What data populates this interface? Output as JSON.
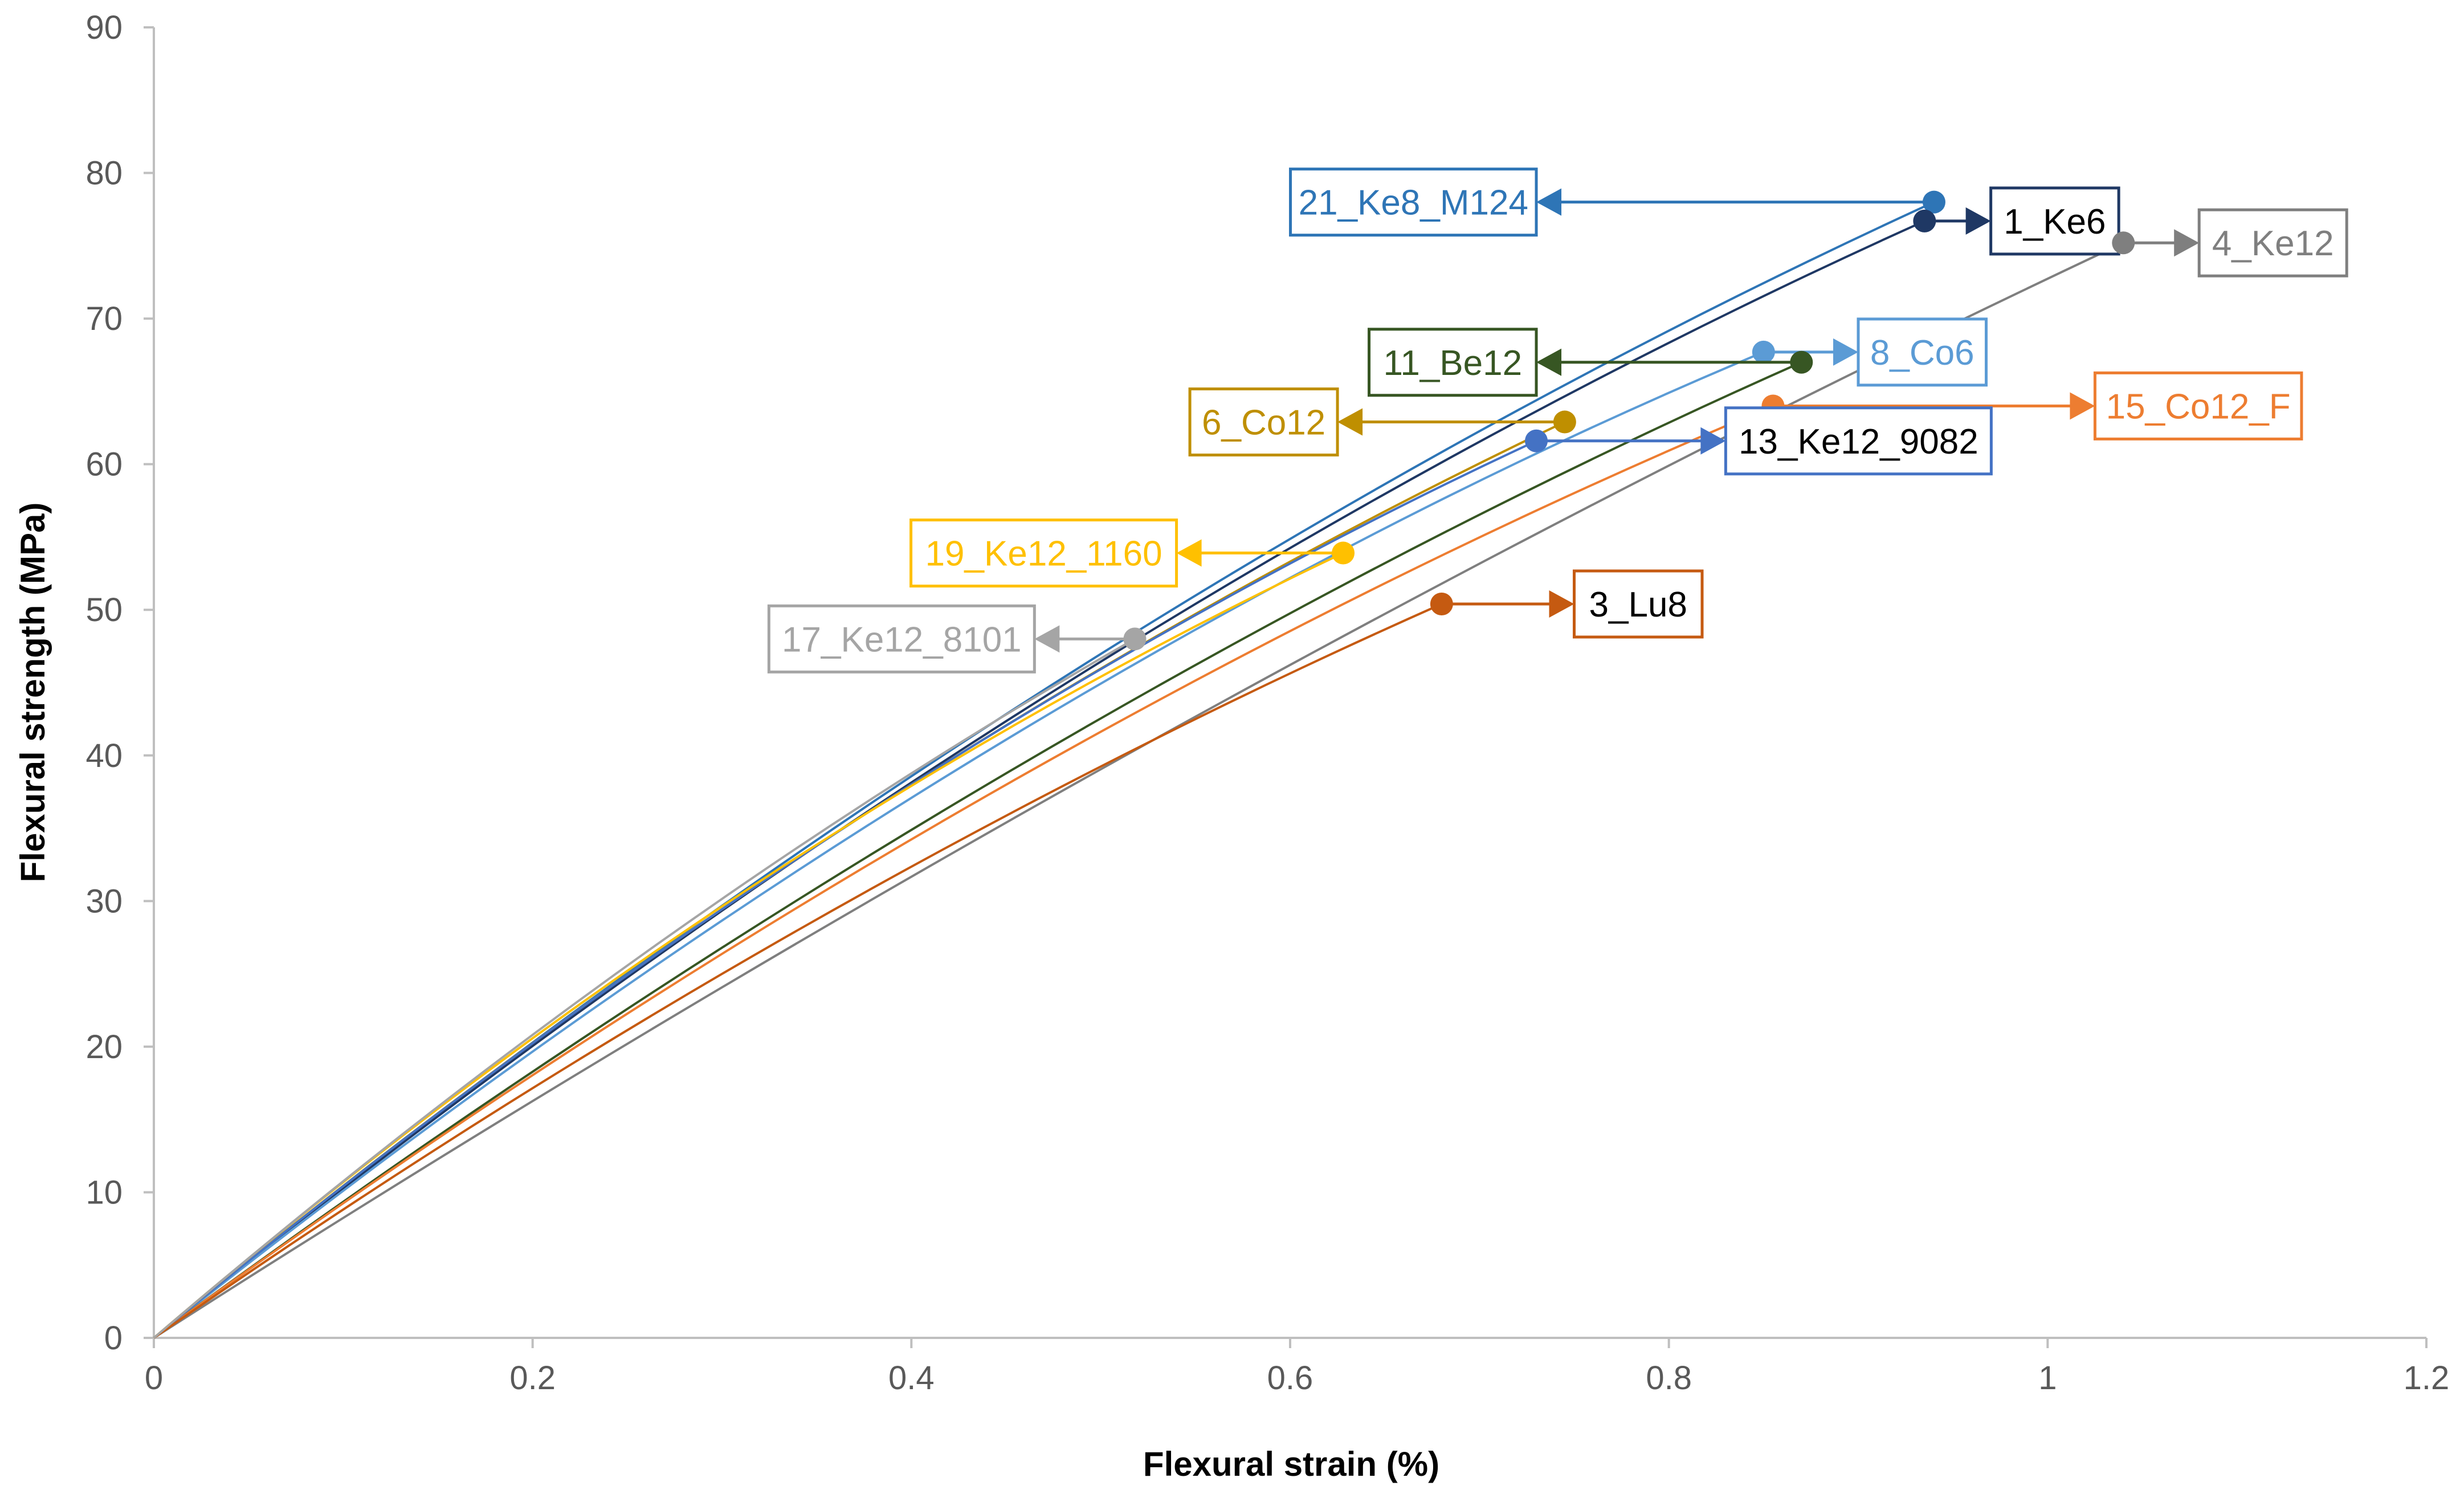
{
  "chart_data": {
    "type": "line",
    "title": "",
    "xlabel": "Flexural strain (%)",
    "ylabel": "Flexural strength (MPa)",
    "xlim": [
      0,
      1.2
    ],
    "ylim": [
      0,
      90
    ],
    "xticks": [
      0,
      0.2,
      0.4,
      0.6,
      0.8,
      1,
      1.2
    ],
    "xtick_labels": [
      "0",
      "0.2",
      "0.4",
      "0.6",
      "0.8",
      "1",
      "1.2"
    ],
    "yticks": [
      0,
      10,
      20,
      30,
      40,
      50,
      60,
      70,
      80,
      90
    ],
    "ytick_labels": [
      "0",
      "10",
      "20",
      "30",
      "40",
      "50",
      "60",
      "70",
      "80",
      "90"
    ],
    "grid": false,
    "series": [
      {
        "name": "21_Ke8_M124",
        "color": "#2E75B6",
        "end": [
          0.94,
          78.0
        ],
        "mid": [
          0.47,
          44.5
        ],
        "box_dir": "left",
        "box_x": 0.73,
        "box_y": 78.0
      },
      {
        "name": "1_Ke6",
        "color": "#1F3864",
        "end": [
          0.935,
          76.7
        ],
        "mid": [
          0.47,
          44.0
        ],
        "box_dir": "right",
        "box_x": 0.97,
        "box_y": 76.7
      },
      {
        "name": "4_Ke12",
        "color": "#7F7F7F",
        "end": [
          1.04,
          75.2
        ],
        "mid": [
          0.52,
          40.5
        ],
        "box_dir": "right",
        "box_x": 1.08,
        "box_y": 75.2
      },
      {
        "name": "8_Co6",
        "color": "#5B9BD5",
        "end": [
          0.85,
          67.7
        ],
        "mid": [
          0.43,
          39.5
        ],
        "box_dir": "right",
        "box_x": 0.9,
        "box_y": 67.7
      },
      {
        "name": "11_Be12",
        "color": "#375623",
        "end": [
          0.87,
          67.0
        ],
        "mid": [
          0.44,
          38.0
        ],
        "box_dir": "left",
        "box_x": 0.73,
        "box_y": 67.0
      },
      {
        "name": "6_Co12",
        "color": "#BF8F00",
        "end": [
          0.745,
          62.9
        ],
        "mid": [
          0.37,
          35.5
        ],
        "box_dir": "left",
        "box_x": 0.625,
        "box_y": 62.9
      },
      {
        "name": "15_Co12_F",
        "color": "#ED7D31",
        "end": [
          0.855,
          64.0
        ],
        "mid": [
          0.43,
          36.5
        ],
        "box_dir": "right",
        "box_x": 1.025,
        "box_y": 64.0
      },
      {
        "name": "13_Ke12_9082",
        "color": "#4472C4",
        "end": [
          0.73,
          61.6
        ],
        "mid": [
          0.37,
          35.5
        ],
        "box_dir": "right",
        "box_x": 0.83,
        "box_y": 61.6
      },
      {
        "name": "19_Ke12_1160",
        "color": "#FFC000",
        "end": [
          0.628,
          53.9
        ],
        "mid": [
          0.31,
          30.5
        ],
        "box_dir": "left",
        "box_x": 0.54,
        "box_y": 53.9
      },
      {
        "name": "3_Lu8",
        "color": "#C55A11",
        "end": [
          0.68,
          50.4
        ],
        "mid": [
          0.34,
          28.0
        ],
        "box_dir": "right",
        "box_x": 0.75,
        "box_y": 50.4
      },
      {
        "name": "17_Ke12_8101",
        "color": "#A5A5A5",
        "end": [
          0.518,
          48.0
        ],
        "mid": [
          0.26,
          26.5
        ],
        "box_dir": "left",
        "box_x": 0.465,
        "box_y": 48.0
      }
    ]
  }
}
